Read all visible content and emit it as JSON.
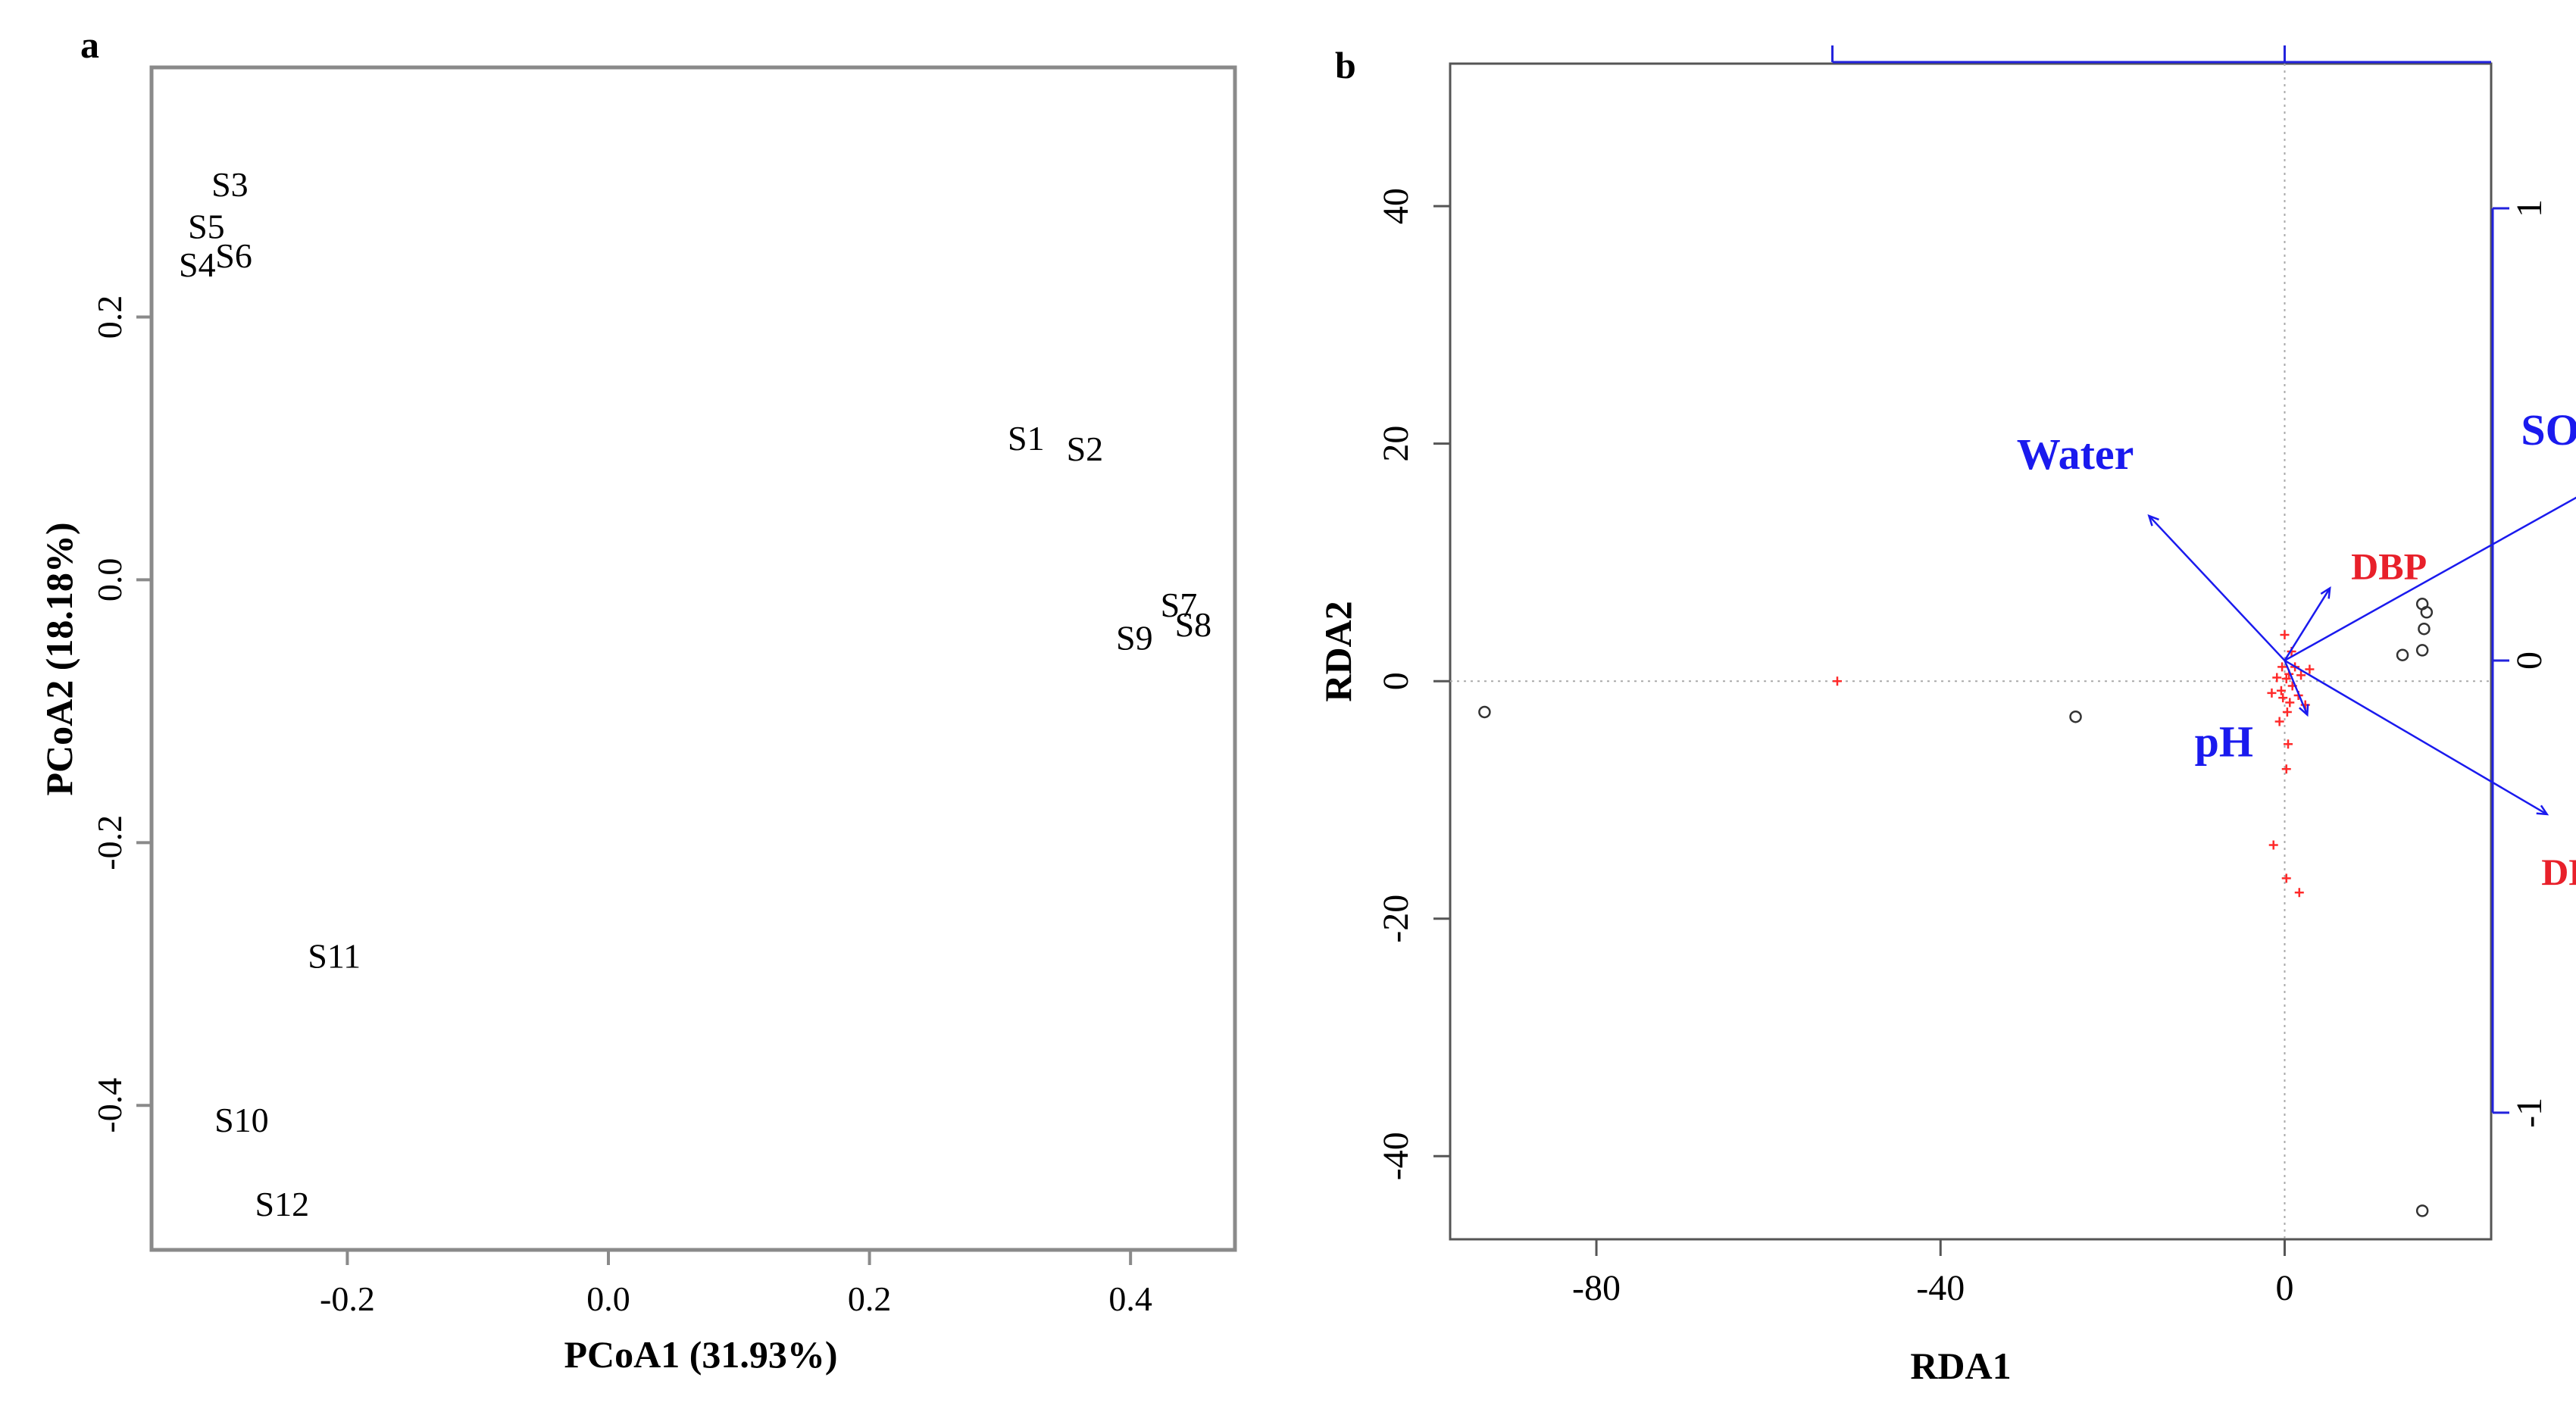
{
  "chart_data": [
    {
      "panel_label": "a",
      "type": "scatter",
      "xlabel": "PCoA1 (31.93%)",
      "ylabel": "PCoA2 (18.18%)",
      "xlim": [
        -0.35,
        0.48
      ],
      "ylim": [
        -0.51,
        0.39
      ],
      "xticks": [
        -0.2,
        0.0,
        0.2,
        0.4
      ],
      "xtick_labels": [
        "-0.2",
        "0.0",
        "0.2",
        "0.4"
      ],
      "yticks": [
        -0.4,
        -0.2,
        0.0,
        0.2
      ],
      "ytick_labels": [
        "-0.4",
        "-0.2",
        "0.0",
        "0.2"
      ],
      "grid": false,
      "points": [
        {
          "label": "S1",
          "x": 0.32,
          "y": 0.105
        },
        {
          "label": "S2",
          "x": 0.365,
          "y": 0.097
        },
        {
          "label": "S3",
          "x": -0.29,
          "y": 0.298
        },
        {
          "label": "S4",
          "x": -0.315,
          "y": 0.237
        },
        {
          "label": "S5",
          "x": -0.308,
          "y": 0.266
        },
        {
          "label": "S6",
          "x": -0.287,
          "y": 0.244
        },
        {
          "label": "S7",
          "x": 0.437,
          "y": -0.022
        },
        {
          "label": "S8",
          "x": 0.448,
          "y": -0.037
        },
        {
          "label": "S9",
          "x": 0.403,
          "y": -0.047
        },
        {
          "label": "S10",
          "x": -0.281,
          "y": -0.414
        },
        {
          "label": "S11",
          "x": -0.21,
          "y": -0.289
        },
        {
          "label": "S12",
          "x": -0.25,
          "y": -0.478
        }
      ]
    },
    {
      "panel_label": "b",
      "type": "scatter",
      "xlabel": "RDA1",
      "ylabel": "RDA2",
      "xlim": [
        -97,
        24
      ],
      "ylim": [
        -47,
        52
      ],
      "xticks": [
        -80,
        -40,
        0
      ],
      "xtick_labels": [
        "-80",
        "-40",
        "0"
      ],
      "yticks": [
        -40,
        -20,
        0,
        20,
        40
      ],
      "ytick_labels": [
        "-40",
        "-20",
        "0",
        "20",
        "40"
      ],
      "right_axis": {
        "range": [
          -1.28,
          1.32
        ],
        "ticks": [
          -1,
          0,
          1
        ],
        "tick_labels": [
          "-1",
          "0",
          "1"
        ]
      },
      "colors": {
        "samples": "#333333",
        "species": "#ff2a2a",
        "env": "#1a1aee",
        "phthalate_label": "#e8202a",
        "axis_box": "#555555",
        "secondary_axis": "#2222dd"
      },
      "sites": [
        {
          "x": -93,
          "y": -2.6
        },
        {
          "x": -24.3,
          "y": -3.0
        },
        {
          "x": 13.7,
          "y": 2.2
        },
        {
          "x": 16.0,
          "y": 6.5
        },
        {
          "x": 16.2,
          "y": 4.4
        },
        {
          "x": 16.5,
          "y": 5.8
        },
        {
          "x": 16.0,
          "y": 2.6
        },
        {
          "x": 16.0,
          "y": -44.6
        }
      ],
      "species": [
        {
          "x": -52,
          "y": 0.0
        },
        {
          "x": -1.3,
          "y": -13.8
        },
        {
          "x": 0.2,
          "y": -16.6
        },
        {
          "x": 1.7,
          "y": -17.8
        },
        {
          "x": 0.2,
          "y": -7.4
        },
        {
          "x": 0.4,
          "y": -5.3
        },
        {
          "x": 0.0,
          "y": 3.9
        },
        {
          "x": 0.8,
          "y": 2.5
        },
        {
          "x": 1.2,
          "y": 1.2
        },
        {
          "x": 1.6,
          "y": -1.2
        },
        {
          "x": 2.4,
          "y": -2.0
        },
        {
          "x": -0.6,
          "y": -3.4
        },
        {
          "x": 0.3,
          "y": -2.6
        },
        {
          "x": -0.3,
          "y": 1.2
        },
        {
          "x": 0.5,
          "y": 0.6
        },
        {
          "x": -0.4,
          "y": -0.8
        },
        {
          "x": 0.9,
          "y": -0.4
        },
        {
          "x": -0.9,
          "y": 0.3
        },
        {
          "x": 0.2,
          "y": 0.2
        },
        {
          "x": 1.9,
          "y": 0.5
        },
        {
          "x": 2.9,
          "y": 1.0
        },
        {
          "x": -1.5,
          "y": -1.0
        },
        {
          "x": 0.6,
          "y": -1.8
        },
        {
          "x": -0.2,
          "y": -1.4
        }
      ],
      "environment_vectors": [
        {
          "name": "Water",
          "x": -0.3,
          "y": 0.32
        },
        {
          "name": "SOM",
          "x": 0.68,
          "y": 0.38
        },
        {
          "name": "DBP",
          "x": 0.1,
          "y": 0.16
        },
        {
          "name": "pH",
          "x": 0.05,
          "y": -0.12
        },
        {
          "name": "DEHP",
          "x": 0.58,
          "y": -0.34
        }
      ]
    }
  ]
}
